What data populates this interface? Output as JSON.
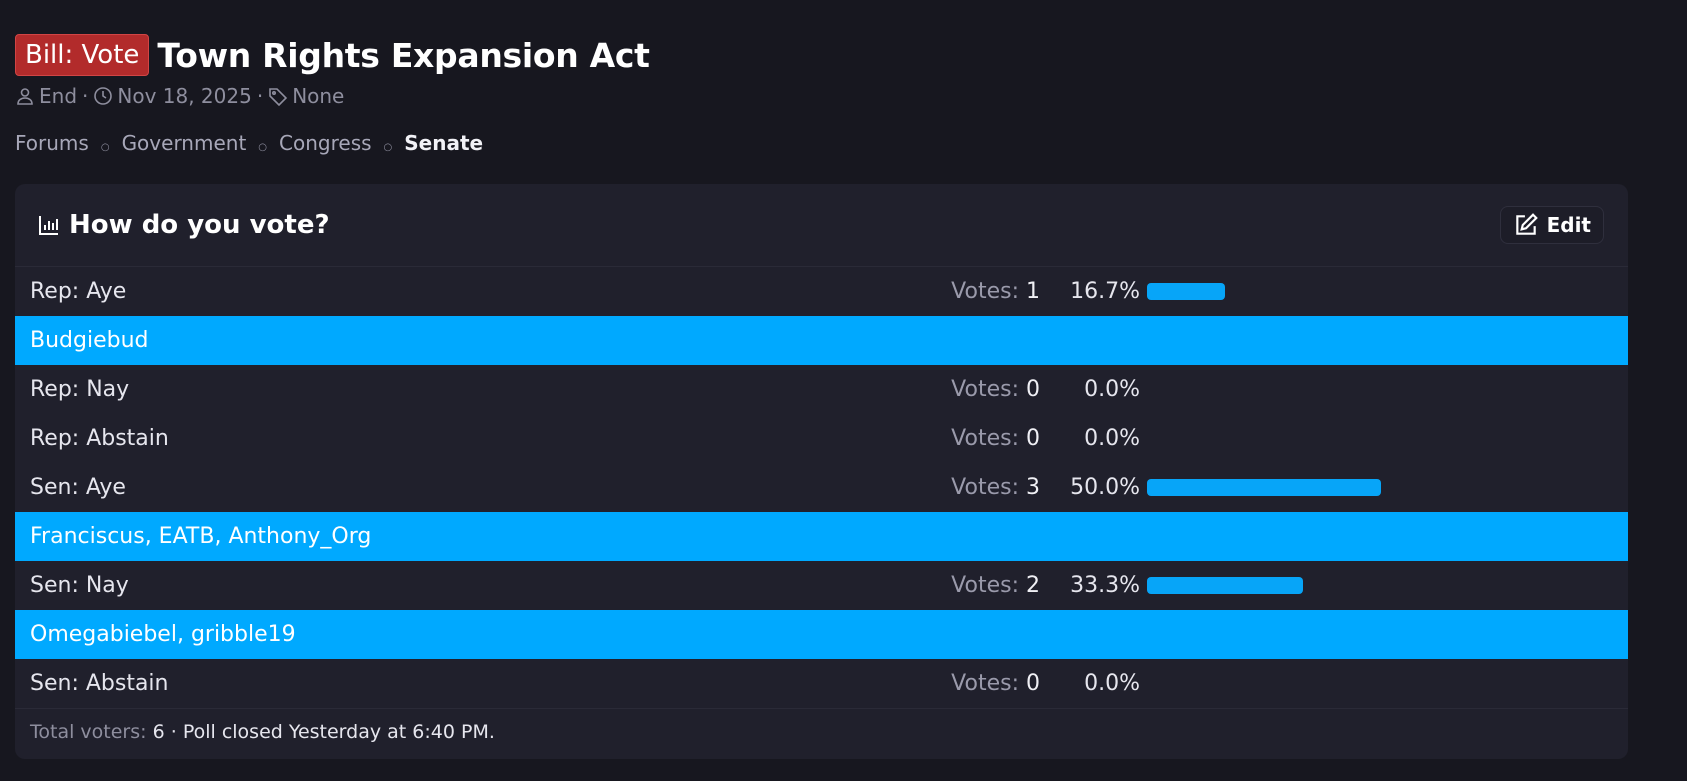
{
  "thread": {
    "prefix": "Bill: Vote",
    "title": "Town Rights Expansion Act",
    "author": "End",
    "date": "Nov 18, 2025",
    "tags": "None"
  },
  "breadcrumb": [
    "Forums",
    "Government",
    "Congress",
    "Senate"
  ],
  "poll": {
    "question": "How do you vote?",
    "edit_label": "Edit",
    "votes_label": "Votes:",
    "options": [
      {
        "label": "Rep: Aye",
        "votes": "1",
        "percent": "16.7%",
        "fraction": 0.167,
        "voters": "Budgiebud"
      },
      {
        "label": "Rep: Nay",
        "votes": "0",
        "percent": "0.0%",
        "fraction": 0.0,
        "voters": ""
      },
      {
        "label": "Rep: Abstain",
        "votes": "0",
        "percent": "0.0%",
        "fraction": 0.0,
        "voters": ""
      },
      {
        "label": "Sen: Aye",
        "votes": "3",
        "percent": "50.0%",
        "fraction": 0.5,
        "voters": "Franciscus, EATB, Anthony_Org"
      },
      {
        "label": "Sen: Nay",
        "votes": "2",
        "percent": "33.3%",
        "fraction": 0.333,
        "voters": "Omegabiebel, gribble19"
      },
      {
        "label": "Sen: Abstain",
        "votes": "0",
        "percent": "0.0%",
        "fraction": 0.0,
        "voters": ""
      }
    ],
    "footer": {
      "total_label": "Total voters:",
      "total": "6",
      "closed": "Poll closed Yesterday at 6:40 PM."
    }
  },
  "colors": {
    "prefix_bg": "#b22b2b",
    "bar": "#07a5f8",
    "voters_bg": "#00a9ff"
  }
}
